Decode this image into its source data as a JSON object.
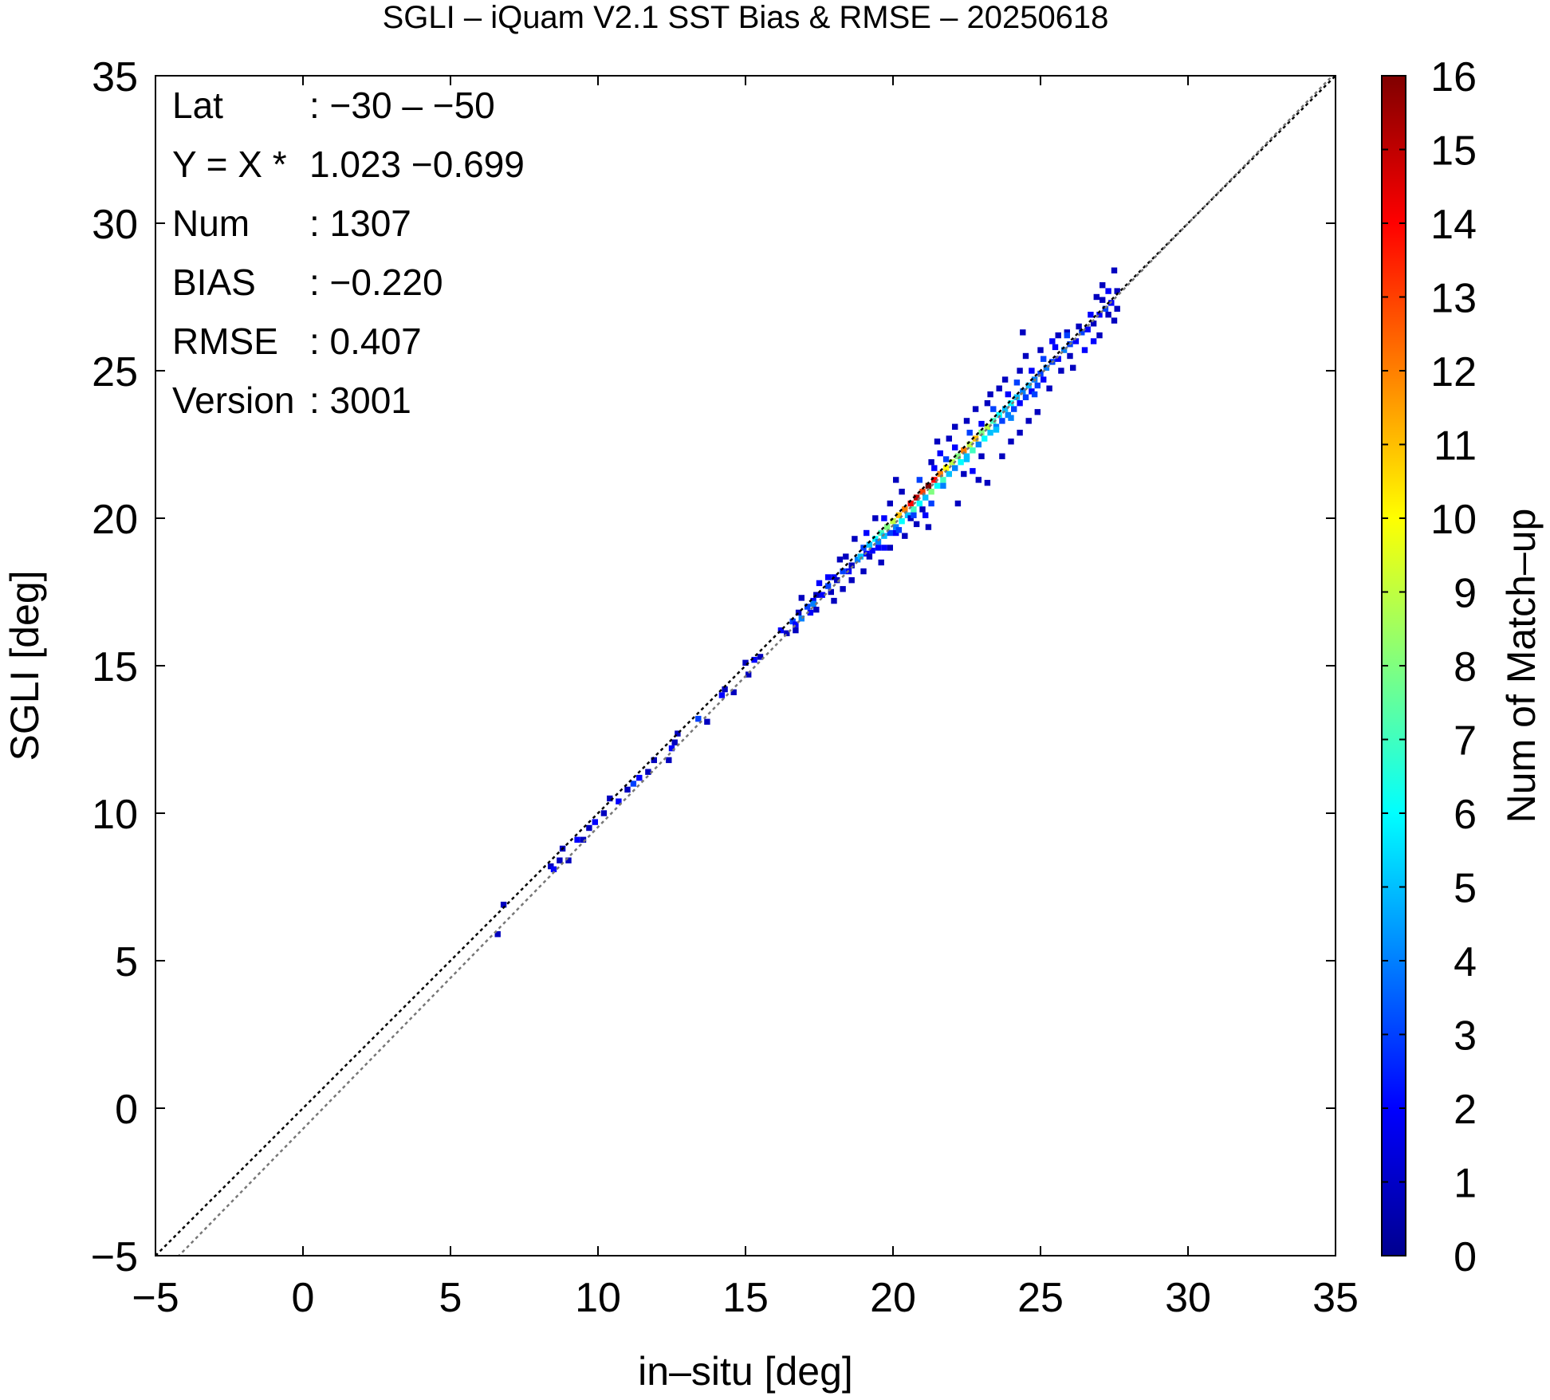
{
  "chart_data": {
    "type": "heatmap",
    "title": "SGLI – iQuam V2.1 SST Bias & RMSE  – 20250618",
    "xlabel": "in–situ [deg]",
    "ylabel": "SGLI [deg]",
    "xlim": [
      -5,
      35
    ],
    "ylim": [
      -5,
      35
    ],
    "x_ticks": [
      "−5",
      "0",
      "5",
      "10",
      "15",
      "20",
      "25",
      "30",
      "35"
    ],
    "y_ticks": [
      "−5",
      "0",
      "5",
      "10",
      "15",
      "20",
      "25",
      "30",
      "35"
    ],
    "grid": false,
    "colorbar": {
      "label": "Num of Match–up",
      "range": [
        0,
        16
      ],
      "ticks": [
        "0",
        "1",
        "2",
        "3",
        "4",
        "5",
        "6",
        "7",
        "8",
        "9",
        "10",
        "11",
        "12",
        "13",
        "14",
        "15",
        "16"
      ],
      "colormap": "jet"
    },
    "stats": [
      {
        "key": "Lat",
        "value": ": −30 – −50"
      },
      {
        "key": "Y = X * ",
        "value": "1.023 −0.699"
      },
      {
        "key": "Num",
        "value": ": 1307"
      },
      {
        "key": "BIAS",
        "value": ": −0.220"
      },
      {
        "key": "RMSE",
        "value": ": 0.407"
      },
      {
        "key": "Version",
        "value": ": 3001"
      }
    ],
    "lines": [
      {
        "type": "identity",
        "slope": 1.0,
        "intercept": 0.0,
        "color": "#000000",
        "dash": "dotted"
      },
      {
        "type": "regression",
        "slope": 1.023,
        "intercept": -0.699,
        "color": "#777777",
        "dash": "dotted"
      }
    ],
    "cell_size": 0.2,
    "points": [
      [
        6.7,
        6.8,
        1
      ],
      [
        6.5,
        5.8,
        1
      ],
      [
        8.3,
        8.1,
        1
      ],
      [
        8.4,
        8.0,
        2
      ],
      [
        8.6,
        8.3,
        1
      ],
      [
        8.9,
        8.3,
        1
      ],
      [
        8.7,
        8.7,
        1
      ],
      [
        9.2,
        9.0,
        2
      ],
      [
        9.4,
        9.0,
        1
      ],
      [
        9.6,
        9.4,
        1
      ],
      [
        9.8,
        9.6,
        2
      ],
      [
        10.1,
        9.9,
        1
      ],
      [
        10.3,
        10.4,
        1
      ],
      [
        10.6,
        10.3,
        2
      ],
      [
        10.9,
        10.7,
        1
      ],
      [
        11.1,
        10.9,
        3
      ],
      [
        11.3,
        11.1,
        2
      ],
      [
        11.6,
        11.3,
        1
      ],
      [
        11.8,
        11.7,
        1
      ],
      [
        12.4,
        12.1,
        2
      ],
      [
        12.5,
        12.3,
        1
      ],
      [
        12.6,
        12.6,
        1
      ],
      [
        12.3,
        11.7,
        1
      ],
      [
        13.3,
        13.1,
        3
      ],
      [
        13.6,
        13.0,
        1
      ],
      [
        14.1,
        13.9,
        2
      ],
      [
        14.2,
        14.1,
        1
      ],
      [
        14.5,
        14.0,
        1
      ],
      [
        14.9,
        15.0,
        1
      ],
      [
        15.0,
        14.6,
        1
      ],
      [
        15.2,
        15.1,
        2
      ],
      [
        15.4,
        15.2,
        1
      ],
      [
        16.1,
        16.1,
        2
      ],
      [
        16.3,
        16.0,
        1
      ],
      [
        16.5,
        16.4,
        3
      ],
      [
        16.6,
        16.3,
        2
      ],
      [
        16.7,
        16.7,
        1
      ],
      [
        16.8,
        16.5,
        4
      ],
      [
        17.0,
        16.9,
        3
      ],
      [
        17.1,
        16.7,
        2
      ],
      [
        17.2,
        17.1,
        2
      ],
      [
        17.3,
        17.3,
        1
      ],
      [
        16.6,
        16.1,
        1
      ],
      [
        16.8,
        17.2,
        1
      ],
      [
        17.5,
        17.3,
        2
      ],
      [
        17.7,
        17.6,
        3
      ],
      [
        17.8,
        17.4,
        1
      ],
      [
        17.9,
        17.9,
        2
      ],
      [
        18.0,
        17.8,
        1
      ],
      [
        18.2,
        18.1,
        3
      ],
      [
        18.4,
        18.1,
        2
      ],
      [
        18.5,
        18.3,
        1
      ],
      [
        18.3,
        18.6,
        1
      ],
      [
        18.7,
        18.5,
        4
      ],
      [
        18.8,
        18.6,
        5
      ],
      [
        18.9,
        18.9,
        3
      ],
      [
        19.0,
        18.7,
        2
      ],
      [
        19.1,
        19.0,
        5
      ],
      [
        19.2,
        18.8,
        2
      ],
      [
        19.3,
        19.2,
        6
      ],
      [
        19.4,
        19.1,
        4
      ],
      [
        19.5,
        19.4,
        7
      ],
      [
        19.6,
        19.3,
        5
      ],
      [
        19.7,
        19.6,
        8
      ],
      [
        19.8,
        19.4,
        3
      ],
      [
        19.9,
        19.8,
        9
      ],
      [
        20.0,
        19.6,
        4
      ],
      [
        20.1,
        20.0,
        11
      ],
      [
        20.2,
        19.8,
        6
      ],
      [
        20.3,
        20.2,
        12
      ],
      [
        20.4,
        20.0,
        5
      ],
      [
        20.5,
        20.4,
        14
      ],
      [
        20.6,
        20.2,
        7
      ],
      [
        20.7,
        20.6,
        15
      ],
      [
        20.8,
        20.4,
        6
      ],
      [
        20.9,
        20.8,
        13
      ],
      [
        21.0,
        20.6,
        5
      ],
      [
        21.1,
        21.0,
        16
      ],
      [
        21.2,
        20.8,
        8
      ],
      [
        21.3,
        21.2,
        14
      ],
      [
        21.4,
        21.0,
        6
      ],
      [
        21.5,
        21.4,
        12
      ],
      [
        21.6,
        21.2,
        7
      ],
      [
        21.7,
        21.6,
        10
      ],
      [
        21.8,
        21.4,
        5
      ],
      [
        21.9,
        21.8,
        9
      ],
      [
        22.0,
        21.6,
        4
      ],
      [
        22.1,
        22.0,
        8
      ],
      [
        22.2,
        21.8,
        6
      ],
      [
        22.3,
        22.2,
        12
      ],
      [
        22.4,
        22.0,
        5
      ],
      [
        22.5,
        22.4,
        9
      ],
      [
        22.6,
        22.2,
        7
      ],
      [
        22.7,
        22.6,
        11
      ],
      [
        22.8,
        22.4,
        4
      ],
      [
        22.9,
        22.8,
        8
      ],
      [
        23.0,
        22.6,
        6
      ],
      [
        23.1,
        23.0,
        9
      ],
      [
        23.2,
        22.8,
        5
      ],
      [
        23.3,
        23.2,
        7
      ],
      [
        23.4,
        23.0,
        4
      ],
      [
        23.5,
        23.4,
        6
      ],
      [
        23.6,
        23.2,
        3
      ],
      [
        23.7,
        23.6,
        5
      ],
      [
        23.8,
        23.4,
        4
      ],
      [
        23.9,
        23.8,
        6
      ],
      [
        24.0,
        23.6,
        3
      ],
      [
        24.1,
        24.0,
        5
      ],
      [
        24.2,
        23.8,
        2
      ],
      [
        24.3,
        24.2,
        4
      ],
      [
        24.4,
        24.0,
        3
      ],
      [
        24.5,
        24.4,
        5
      ],
      [
        24.6,
        24.2,
        2
      ],
      [
        24.7,
        24.6,
        4
      ],
      [
        24.8,
        24.4,
        3
      ],
      [
        24.9,
        24.8,
        3
      ],
      [
        25.0,
        24.6,
        2
      ],
      [
        25.1,
        25.0,
        4
      ],
      [
        25.3,
        25.2,
        3
      ],
      [
        25.5,
        25.3,
        2
      ],
      [
        25.7,
        25.6,
        4
      ],
      [
        25.9,
        25.8,
        3
      ],
      [
        26.1,
        25.9,
        2
      ],
      [
        26.3,
        26.2,
        3
      ],
      [
        26.5,
        26.3,
        2
      ],
      [
        26.7,
        26.5,
        1
      ],
      [
        26.9,
        26.8,
        2
      ],
      [
        27.1,
        27.0,
        3
      ],
      [
        27.3,
        27.2,
        2
      ],
      [
        27.5,
        27.6,
        1
      ],
      [
        27.4,
        28.3,
        1
      ],
      [
        19.3,
        19.9,
        1
      ],
      [
        19.6,
        19.9,
        2
      ],
      [
        19.1,
        18.6,
        1
      ],
      [
        19.4,
        18.9,
        2
      ],
      [
        20.0,
        19.4,
        2
      ],
      [
        20.5,
        19.9,
        1
      ],
      [
        20.9,
        20.2,
        1
      ],
      [
        20.2,
        20.8,
        1
      ],
      [
        19.8,
        20.4,
        1
      ],
      [
        20.0,
        21.2,
        1
      ],
      [
        21.1,
        19.6,
        1
      ],
      [
        22.1,
        20.4,
        1
      ],
      [
        22.3,
        21.4,
        1
      ],
      [
        22.8,
        21.2,
        1
      ],
      [
        23.1,
        21.1,
        1
      ],
      [
        21.5,
        22.1,
        2
      ],
      [
        21.2,
        21.8,
        1
      ],
      [
        21.4,
        22.5,
        1
      ],
      [
        21.8,
        22.6,
        1
      ],
      [
        22.0,
        23.0,
        1
      ],
      [
        22.4,
        23.2,
        1
      ],
      [
        22.7,
        23.6,
        1
      ],
      [
        23.1,
        23.8,
        1
      ],
      [
        23.2,
        24.1,
        1
      ],
      [
        23.5,
        24.3,
        1
      ],
      [
        23.7,
        24.6,
        1
      ],
      [
        24.2,
        24.9,
        1
      ],
      [
        24.4,
        25.4,
        1
      ],
      [
        24.9,
        25.6,
        1
      ],
      [
        25.3,
        25.9,
        2
      ],
      [
        25.5,
        26.1,
        1
      ],
      [
        25.8,
        26.2,
        1
      ],
      [
        24.3,
        26.2,
        1
      ],
      [
        24.8,
        23.5,
        1
      ],
      [
        25.2,
        24.3,
        1
      ],
      [
        25.6,
        24.9,
        1
      ],
      [
        26.0,
        25.0,
        1
      ],
      [
        26.4,
        25.6,
        2
      ],
      [
        26.7,
        25.9,
        2
      ],
      [
        26.9,
        26.1,
        1
      ],
      [
        27.2,
        26.8,
        1
      ],
      [
        27.4,
        26.6,
        1
      ],
      [
        27.0,
        27.8,
        1
      ],
      [
        23.6,
        22.0,
        1
      ],
      [
        23.9,
        22.5,
        1
      ],
      [
        24.2,
        22.8,
        1
      ],
      [
        24.5,
        23.2,
        1
      ],
      [
        22.6,
        21.5,
        2
      ],
      [
        22.9,
        22.0,
        1
      ],
      [
        21.0,
        20.0,
        2
      ],
      [
        20.7,
        19.7,
        1
      ],
      [
        20.3,
        19.3,
        1
      ],
      [
        19.8,
        18.9,
        1
      ],
      [
        19.5,
        18.4,
        1
      ],
      [
        18.9,
        18.1,
        1
      ],
      [
        18.5,
        17.8,
        1
      ],
      [
        18.2,
        17.5,
        1
      ],
      [
        17.9,
        17.1,
        1
      ],
      [
        17.3,
        16.8,
        1
      ],
      [
        17.7,
        17.9,
        2
      ],
      [
        18.6,
        19.2,
        1
      ],
      [
        18.1,
        18.5,
        1
      ],
      [
        17.4,
        17.7,
        2
      ],
      [
        17.2,
        17.0,
        4
      ],
      [
        19.0,
        19.4,
        2
      ],
      [
        20.8,
        21.2,
        3
      ],
      [
        21.3,
        21.6,
        2
      ],
      [
        21.7,
        21.9,
        3
      ],
      [
        22.0,
        22.3,
        2
      ],
      [
        22.5,
        22.8,
        3
      ],
      [
        22.9,
        23.1,
        2
      ],
      [
        23.3,
        23.6,
        3
      ],
      [
        23.8,
        24.1,
        2
      ],
      [
        24.1,
        24.5,
        3
      ],
      [
        24.6,
        24.9,
        2
      ],
      [
        25.0,
        25.3,
        3
      ],
      [
        25.4,
        25.7,
        2
      ],
      [
        25.8,
        26.1,
        3
      ],
      [
        26.2,
        26.4,
        1
      ],
      [
        26.6,
        26.8,
        2
      ],
      [
        27.0,
        27.3,
        1
      ],
      [
        27.2,
        27.6,
        2
      ],
      [
        26.8,
        27.4,
        1
      ],
      [
        27.5,
        27.0,
        1
      ],
      [
        25.9,
        25.4,
        1
      ],
      [
        24.7,
        24.1,
        3
      ],
      [
        23.9,
        23.3,
        4
      ],
      [
        23.4,
        22.9,
        5
      ],
      [
        22.4,
        21.9,
        5
      ],
      [
        21.6,
        21.0,
        4
      ],
      [
        21.2,
        20.4,
        3
      ],
      [
        20.6,
        20.0,
        3
      ],
      [
        20.1,
        19.5,
        3
      ],
      [
        19.6,
        18.9,
        2
      ]
    ]
  }
}
